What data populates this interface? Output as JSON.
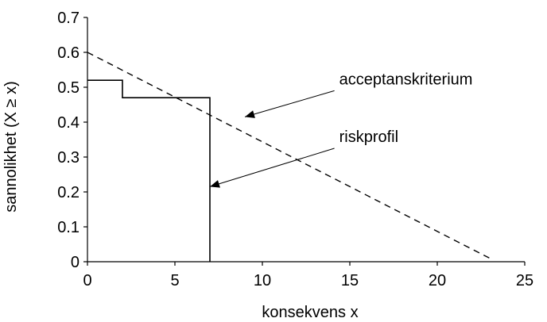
{
  "chart_data": {
    "type": "line",
    "title": "",
    "xlabel": "konsekvens x",
    "ylabel": "sannolikhet (X ≥ x)",
    "xlim": [
      0,
      25
    ],
    "ylim": [
      0,
      0.7
    ],
    "x_ticks": [
      0,
      5,
      10,
      15,
      20,
      25
    ],
    "x_tick_labels": [
      "0",
      "5",
      "10",
      "15",
      "20",
      "25"
    ],
    "y_ticks": [
      0,
      0.1,
      0.2,
      0.3,
      0.4,
      0.5,
      0.6,
      0.7
    ],
    "y_tick_labels": [
      "0",
      "0.1",
      "0.2",
      "0.3",
      "0.4",
      "0.5",
      "0.6",
      "0.7"
    ],
    "grid": false,
    "series": [
      {
        "key": "riskprofil",
        "style": "solid-step",
        "points": [
          [
            0,
            0.52
          ],
          [
            2,
            0.52
          ],
          [
            2,
            0.47
          ],
          [
            7,
            0.47
          ],
          [
            7,
            0
          ]
        ]
      },
      {
        "key": "acceptanskriterium",
        "style": "dashed",
        "points": [
          [
            0,
            0.6
          ],
          [
            23,
            0.01
          ]
        ]
      }
    ],
    "annotations": [
      {
        "text": "acceptanskriterium",
        "target": [
          9,
          0.415
        ],
        "label_at": [
          14.3,
          0.49
        ]
      },
      {
        "text": "riskprofil",
        "target": [
          7.0,
          0.215
        ],
        "label_at": [
          14.3,
          0.325
        ]
      }
    ]
  }
}
